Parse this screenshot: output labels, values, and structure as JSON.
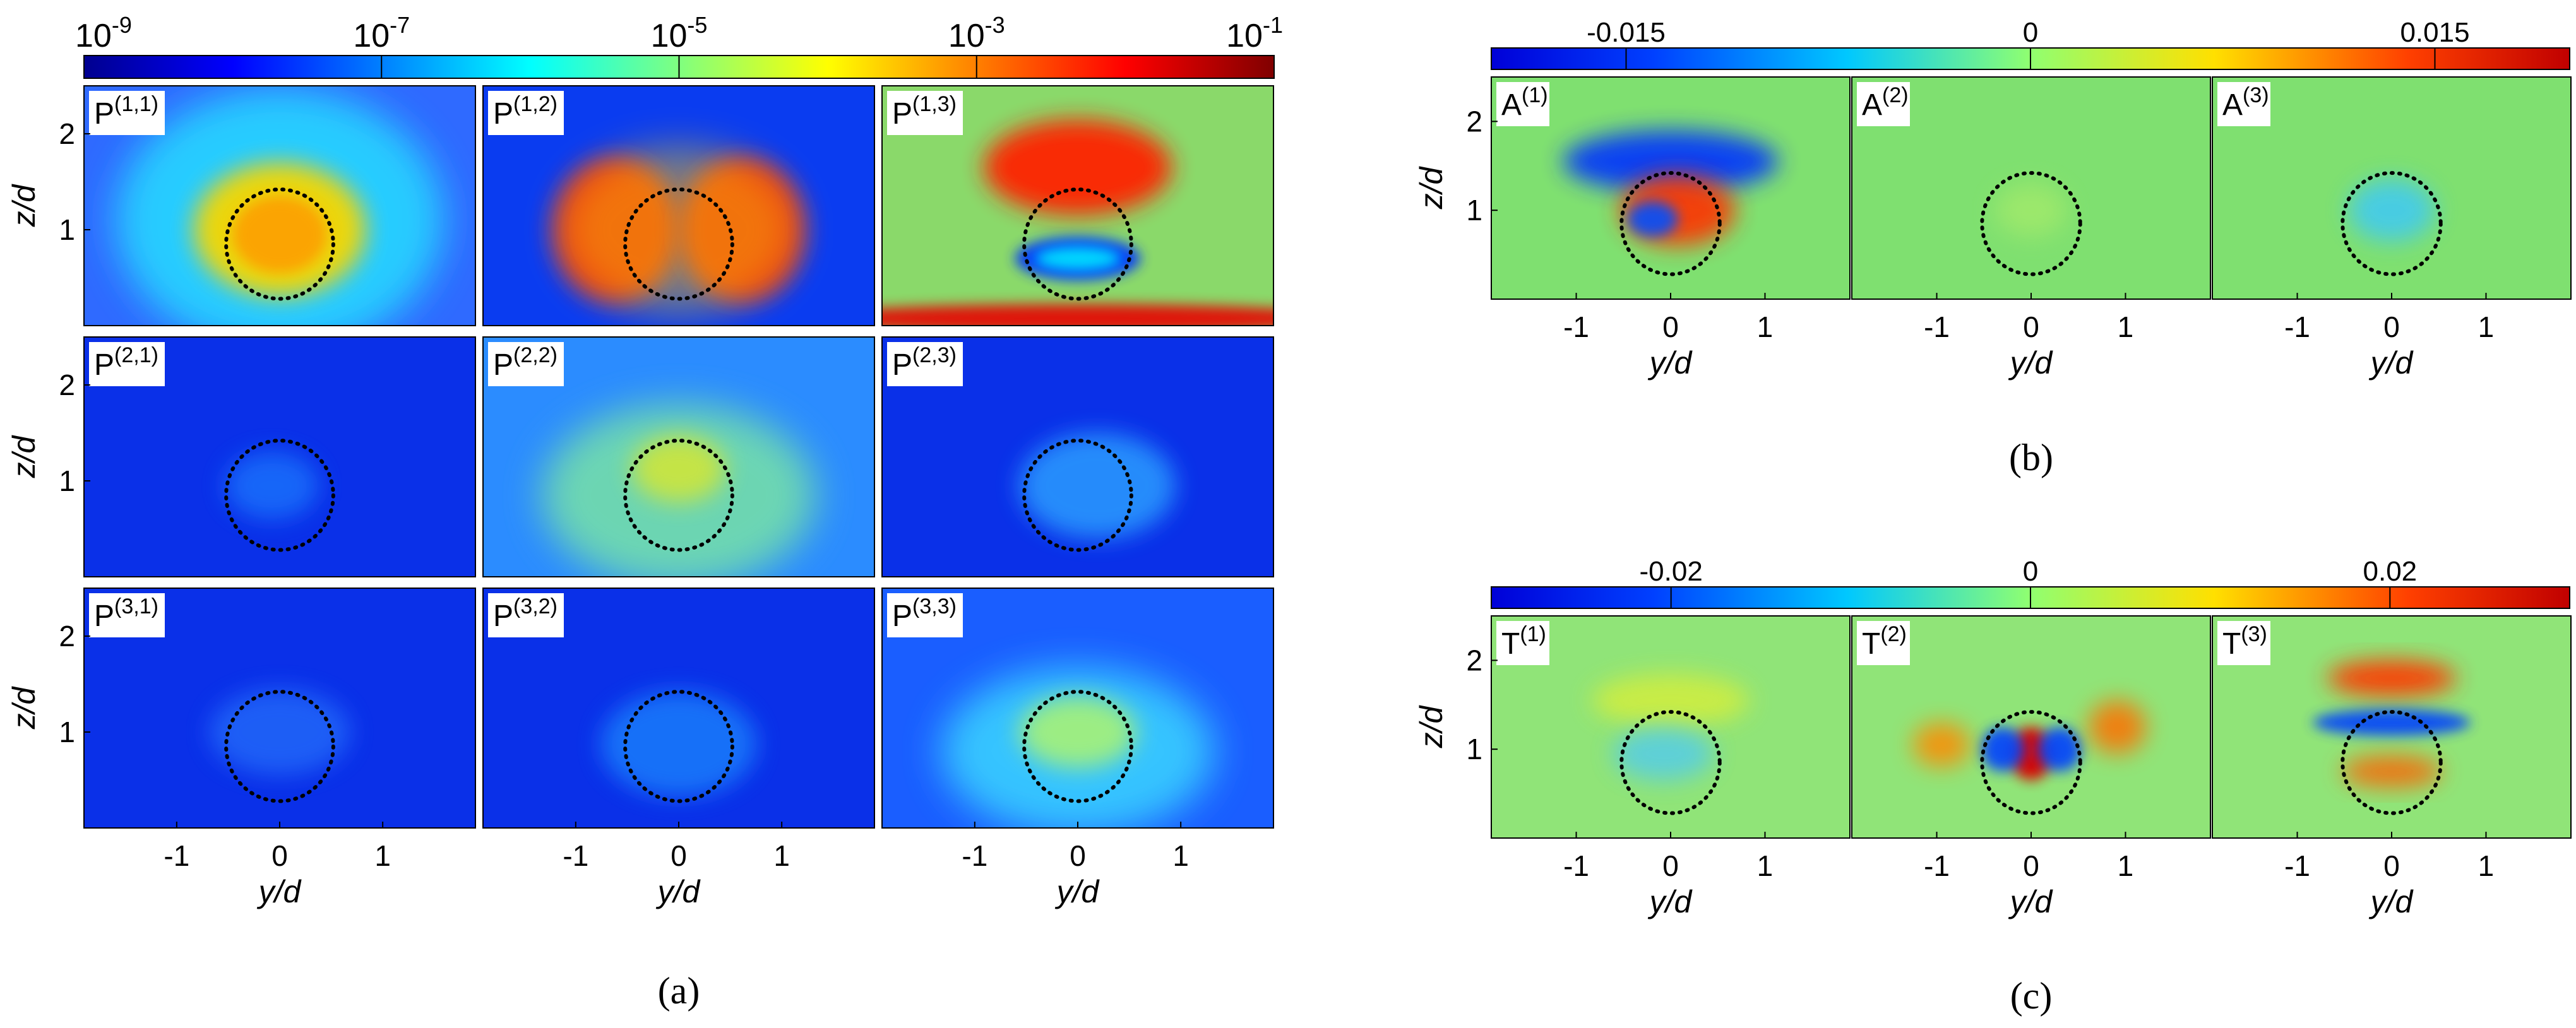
{
  "figure": {
    "captions": [
      "(a)",
      "(b)",
      "(c)"
    ]
  },
  "chart_data": [
    {
      "type": "heatmap",
      "id": "a",
      "caption": "(a)",
      "colorbar": {
        "scale": "log",
        "range": [
          1e-09,
          0.1
        ],
        "ticks": [
          {
            "value": 1e-09,
            "base": "10",
            "exp": "-9"
          },
          {
            "value": 1e-07,
            "base": "10",
            "exp": "-7"
          },
          {
            "value": 1e-05,
            "base": "10",
            "exp": "-5"
          },
          {
            "value": 0.001,
            "base": "10",
            "exp": "-3"
          },
          {
            "value": 0.1,
            "base": "10",
            "exp": "-1"
          }
        ]
      },
      "xlabel": "y/d",
      "ylabel": "z/d",
      "xticks": [
        "-1",
        "0",
        "1"
      ],
      "yticks": [
        "2",
        "1"
      ],
      "panels": [
        {
          "label": "P",
          "sup": "(1,1)"
        },
        {
          "label": "P",
          "sup": "(1,2)"
        },
        {
          "label": "P",
          "sup": "(1,3)"
        },
        {
          "label": "P",
          "sup": "(2,1)"
        },
        {
          "label": "P",
          "sup": "(2,2)"
        },
        {
          "label": "P",
          "sup": "(2,3)"
        },
        {
          "label": "P",
          "sup": "(3,1)"
        },
        {
          "label": "P",
          "sup": "(3,2)"
        },
        {
          "label": "P",
          "sup": "(3,3)"
        }
      ]
    },
    {
      "type": "heatmap",
      "id": "b",
      "caption": "(b)",
      "colorbar": {
        "scale": "linear",
        "range": [
          -0.02,
          0.02
        ],
        "ticks": [
          {
            "value": -0.015,
            "text": "-0.015"
          },
          {
            "value": 0,
            "text": "0"
          },
          {
            "value": 0.015,
            "text": "0.015"
          }
        ]
      },
      "xlabel": "y/d",
      "ylabel": "z/d",
      "xticks": [
        "-1",
        "0",
        "1"
      ],
      "yticks": [
        "2",
        "1"
      ],
      "panels": [
        {
          "label": "A",
          "sup": "(1)"
        },
        {
          "label": "A",
          "sup": "(2)"
        },
        {
          "label": "A",
          "sup": "(3)"
        }
      ]
    },
    {
      "type": "heatmap",
      "id": "c",
      "caption": "(c)",
      "colorbar": {
        "scale": "linear",
        "range": [
          -0.03,
          0.03
        ],
        "ticks": [
          {
            "value": -0.02,
            "text": "-0.02"
          },
          {
            "value": 0,
            "text": "0"
          },
          {
            "value": 0.02,
            "text": "0.02"
          }
        ]
      },
      "xlabel": "y/d",
      "ylabel": "z/d",
      "xticks": [
        "-1",
        "0",
        "1"
      ],
      "yticks": [
        "2",
        "1"
      ],
      "panels": [
        {
          "label": "T",
          "sup": "(1)"
        },
        {
          "label": "T",
          "sup": "(2)"
        },
        {
          "label": "T",
          "sup": "(3)"
        }
      ]
    }
  ]
}
